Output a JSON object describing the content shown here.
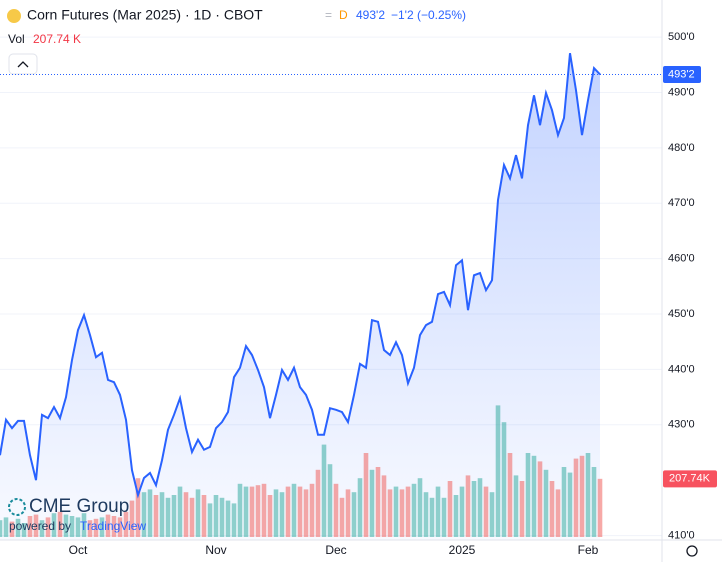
{
  "header": {
    "title": "Corn Futures (Mar 2025) · 1D · CBOT",
    "interval": "D",
    "price": "493'2",
    "change": "−1'2 (−0.25%)",
    "vol_label": "Vol",
    "vol_value": "207.74 K"
  },
  "logo": {
    "name": "CME Group",
    "powered": "powered by",
    "brand": "TradingView"
  },
  "chart_data": {
    "type": "area",
    "color": "#2962ff",
    "up_color": "rgba(38,166,154,0.5)",
    "down_color": "rgba(239,83,80,0.5)",
    "categories": [
      null,
      null,
      null,
      null,
      null,
      null,
      null,
      null,
      null,
      null,
      null,
      null,
      null,
      "Oct",
      null,
      null,
      null,
      null,
      null,
      null,
      null,
      null,
      null,
      null,
      null,
      null,
      null,
      null,
      null,
      null,
      null,
      null,
      null,
      null,
      null,
      null,
      "Nov",
      null,
      null,
      null,
      null,
      null,
      null,
      null,
      null,
      null,
      null,
      null,
      null,
      null,
      null,
      null,
      null,
      null,
      null,
      null,
      "Dec",
      null,
      null,
      null,
      null,
      null,
      null,
      null,
      null,
      null,
      null,
      null,
      null,
      null,
      null,
      null,
      null,
      null,
      null,
      null,
      null,
      "2025",
      null,
      null,
      null,
      null,
      null,
      null,
      null,
      null,
      null,
      null,
      null,
      null,
      null,
      null,
      null,
      null,
      null,
      null,
      null,
      null,
      "Feb",
      null,
      null
    ],
    "values": [
      424.5,
      430.9,
      429.4,
      430.7,
      430.7,
      424.5,
      420.0,
      431.8,
      431.2,
      433.2,
      431.2,
      435.0,
      441.7,
      447.1,
      449.8,
      446.2,
      442.2,
      443.0,
      438.1,
      437.7,
      435.4,
      430.9,
      421.8,
      417.3,
      420.4,
      421.3,
      419.1,
      423.6,
      429.1,
      431.8,
      434.8,
      429.4,
      425.1,
      427.3,
      425.5,
      426.0,
      429.4,
      430.5,
      432.3,
      438.6,
      440.3,
      444.2,
      442.6,
      439.9,
      436.8,
      431.2,
      435.4,
      439.9,
      438.1,
      440.3,
      436.8,
      435.4,
      432.7,
      428.2,
      428.2,
      433.0,
      432.7,
      432.3,
      430.5,
      435.4,
      441.0,
      440.3,
      448.9,
      448.6,
      443.5,
      442.6,
      444.9,
      442.6,
      437.5,
      440.3,
      446.2,
      448.0,
      448.6,
      453.6,
      454.0,
      451.6,
      458.8,
      459.7,
      450.7,
      457.0,
      457.4,
      454.3,
      456.1,
      470.6,
      476.9,
      474.5,
      478.7,
      474.5,
      484.1,
      489.5,
      484.1,
      489.9,
      486.8,
      482.3,
      485.4,
      497.1,
      490.4,
      482.3,
      488.6,
      494.4,
      493.25
    ],
    "volume": [
      60,
      70,
      55,
      65,
      50,
      75,
      80,
      60,
      70,
      85,
      90,
      80,
      75,
      70,
      85,
      60,
      65,
      70,
      80,
      75,
      70,
      90,
      130,
      210,
      160,
      170,
      150,
      160,
      140,
      150,
      180,
      160,
      140,
      170,
      150,
      120,
      150,
      140,
      130,
      120,
      190,
      180,
      180,
      185,
      190,
      150,
      170,
      160,
      180,
      190,
      180,
      170,
      190,
      240,
      330,
      260,
      190,
      140,
      170,
      160,
      210,
      300,
      240,
      250,
      220,
      170,
      180,
      170,
      180,
      190,
      210,
      160,
      140,
      180,
      140,
      200,
      150,
      180,
      220,
      200,
      210,
      180,
      160,
      470,
      410,
      300,
      220,
      200,
      300,
      290,
      270,
      240,
      200,
      170,
      250,
      230,
      280,
      290,
      300,
      250,
      207.74
    ],
    "volume_label": "207.74K",
    "ylim": [
      409.2,
      506.7
    ],
    "yticks": [
      {
        "value": 410,
        "label": "410'0"
      },
      {
        "value": 430,
        "label": "430'0"
      },
      {
        "value": 440,
        "label": "440'0"
      },
      {
        "value": 450,
        "label": "450'0"
      },
      {
        "value": 460,
        "label": "460'0"
      },
      {
        "value": 470,
        "label": "470'0"
      },
      {
        "value": 480,
        "label": "480'0"
      },
      {
        "value": 490,
        "label": "490'0"
      },
      {
        "value": 500,
        "label": "500'0"
      }
    ],
    "grid": true
  }
}
